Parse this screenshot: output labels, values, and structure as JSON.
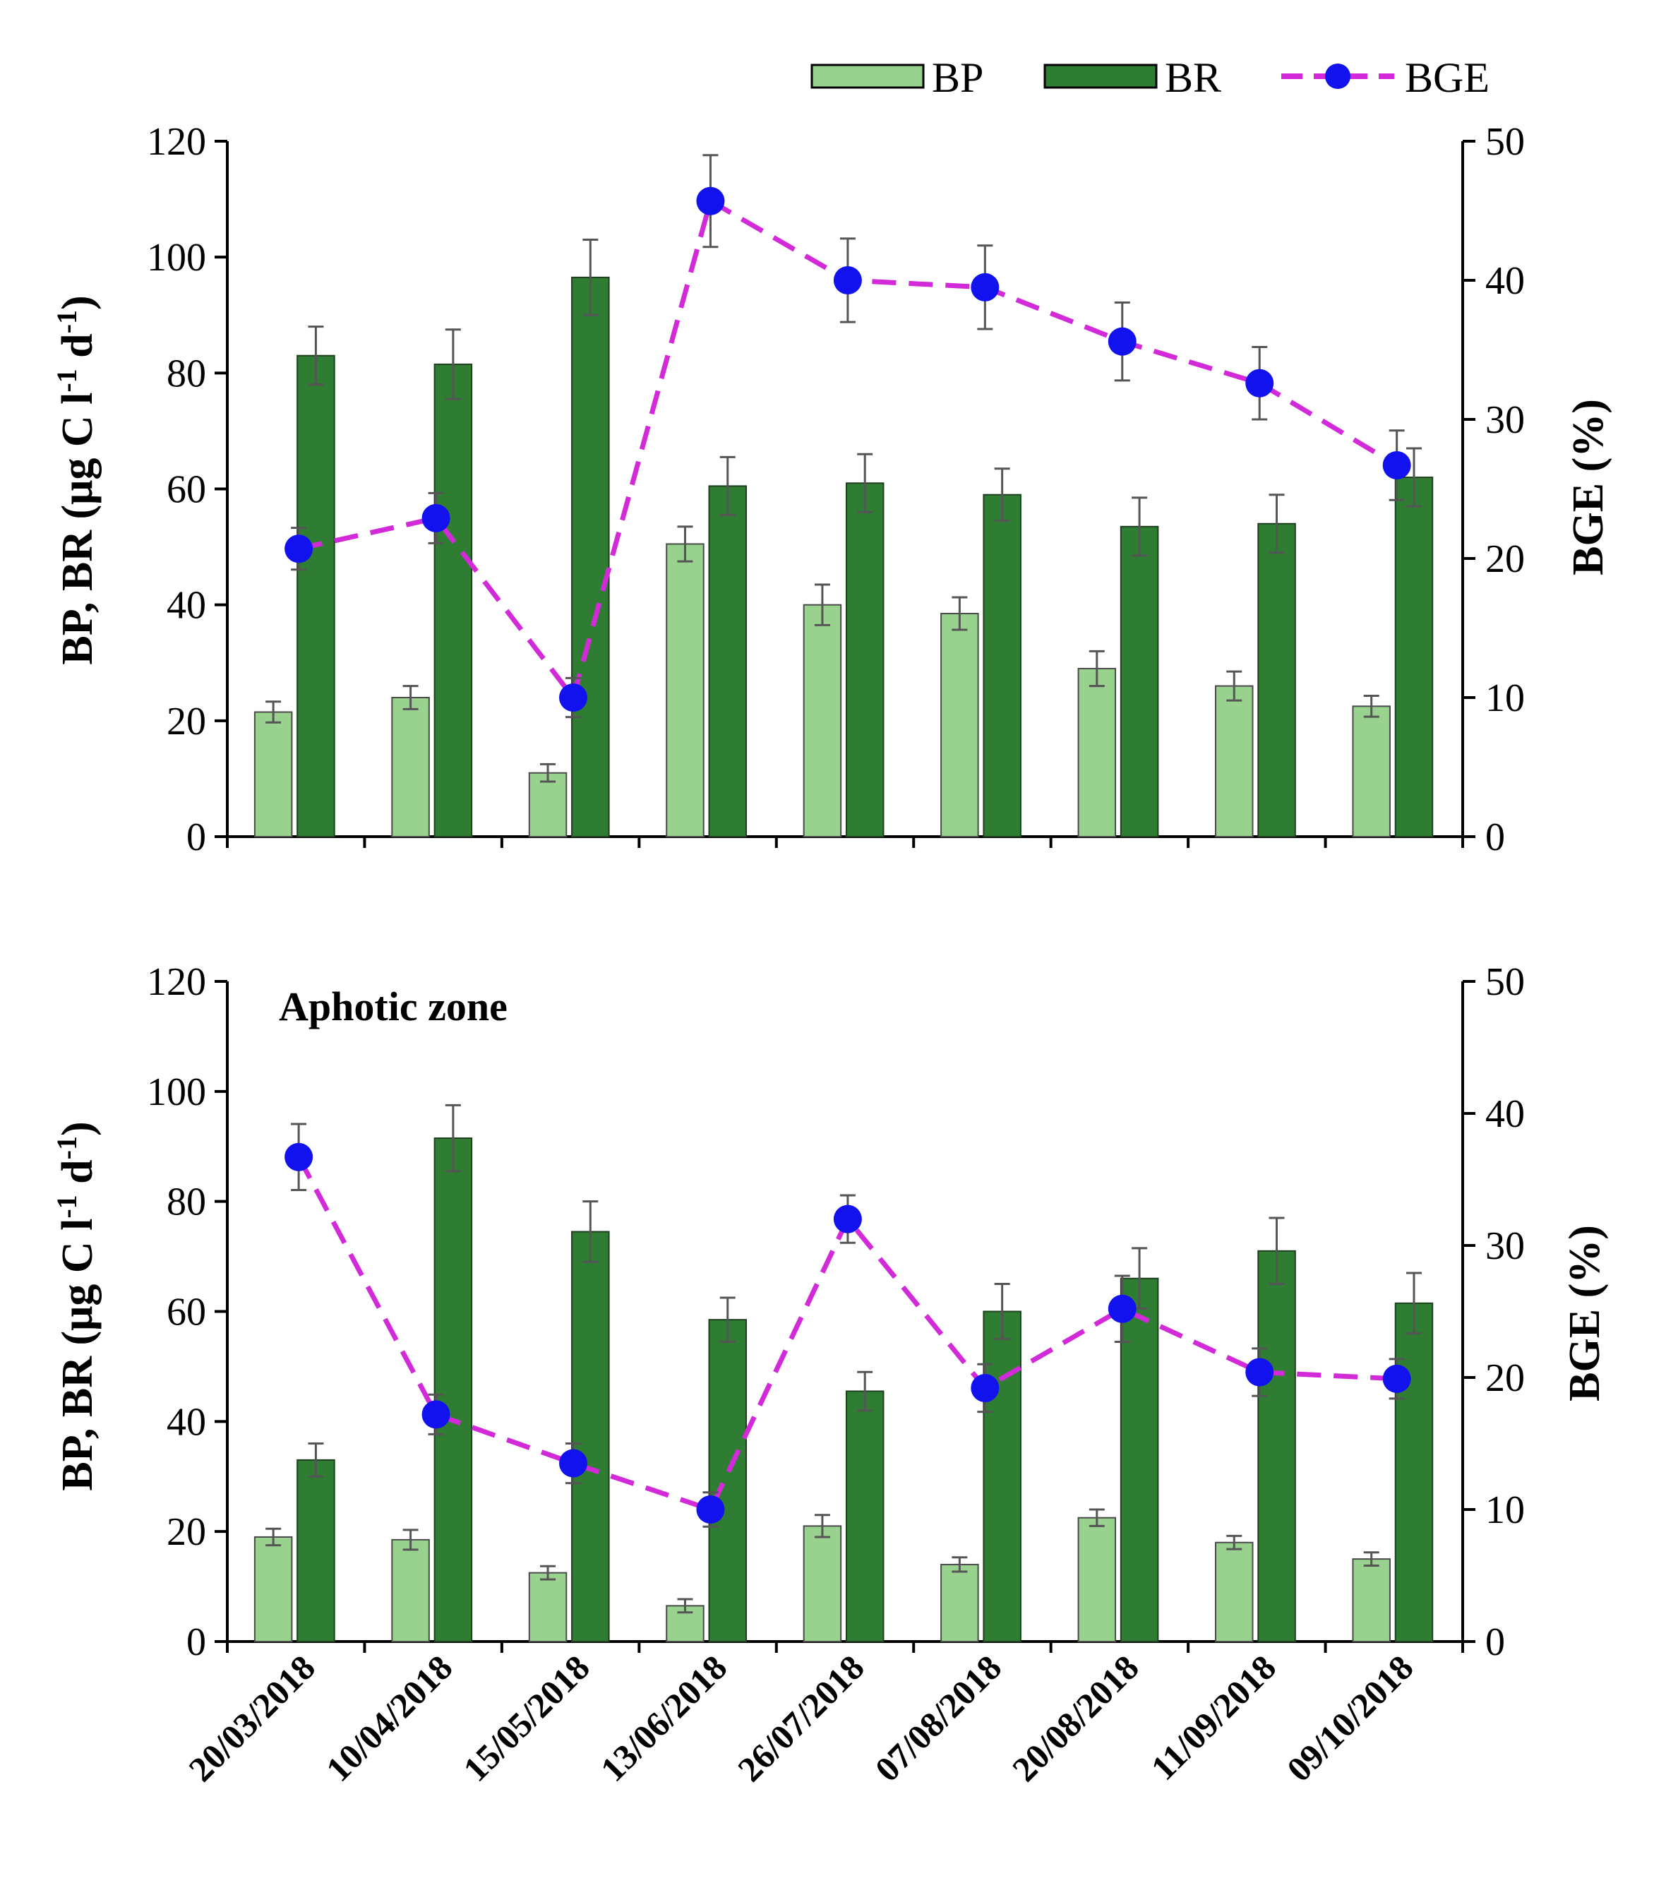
{
  "legend": {
    "bp": "BP",
    "br": "BR",
    "bge": "BGE"
  },
  "colors": {
    "bp": "#99d18f",
    "br": "#2e7d32",
    "bge_line": "#d22ad8",
    "bge_marker": "#1212ee",
    "axis": "#000000",
    "error": "#555555"
  },
  "chart_data": [
    {
      "type": "bar",
      "panel": "top",
      "title": "",
      "categories": [
        "20/03/2018",
        "10/04/2018",
        "15/05/2018",
        "13/06/2018",
        "26/07/2018",
        "07/08/2018",
        "20/08/2018",
        "11/09/2018",
        "09/10/2018"
      ],
      "ylabel": "BP, BR (μg C l-1 d-1)",
      "ylabel_main": "BP, BR (μg C l",
      "ylabel_sup1": "-1",
      "ylabel_mid": " d",
      "ylabel_sup2": "-1",
      "ylabel_end": ")",
      "y2label": "BGE (%)",
      "ylim": [
        0,
        120
      ],
      "y2lim": [
        0,
        50
      ],
      "yticks": [
        "0",
        "20",
        "40",
        "60",
        "80",
        "100",
        "120"
      ],
      "y2ticks": [
        "0",
        "10",
        "20",
        "30",
        "40",
        "50"
      ],
      "series": [
        {
          "name": "BP",
          "values": [
            21.5,
            24,
            11,
            50.5,
            40,
            38.5,
            29,
            26,
            22.5
          ],
          "errors": [
            1.8,
            2,
            1.5,
            3,
            3.5,
            2.8,
            3,
            2.5,
            1.8
          ]
        },
        {
          "name": "BR",
          "values": [
            83,
            81.5,
            96.5,
            60.5,
            61,
            59,
            53.5,
            54,
            62
          ],
          "errors": [
            5,
            6,
            6.5,
            5,
            5,
            4.5,
            5,
            5,
            5
          ]
        },
        {
          "name": "BGE",
          "axis": "right",
          "values": [
            20.7,
            22.9,
            10,
            45.7,
            40,
            39.5,
            35.6,
            32.6,
            26.7
          ],
          "errors": [
            1.5,
            1.8,
            1.4,
            3.3,
            3,
            3,
            2.8,
            2.6,
            2.5
          ]
        }
      ]
    },
    {
      "type": "bar",
      "panel": "bottom",
      "title": "Aphotic zone",
      "categories": [
        "20/03/2018",
        "10/04/2018",
        "15/05/2018",
        "13/06/2018",
        "26/07/2018",
        "07/08/2018",
        "20/08/2018",
        "11/09/2018",
        "09/10/2018"
      ],
      "ylabel": "BP, BR (μg C l-1 d-1)",
      "ylabel_main": "BP, BR (μg C l",
      "ylabel_sup1": "-1",
      "ylabel_mid": " d",
      "ylabel_sup2": "-1",
      "ylabel_end": ")",
      "y2label": "BGE (%)",
      "ylim": [
        0,
        120
      ],
      "y2lim": [
        0,
        50
      ],
      "yticks": [
        "0",
        "20",
        "40",
        "60",
        "80",
        "100",
        "120"
      ],
      "y2ticks": [
        "0",
        "10",
        "20",
        "30",
        "40",
        "50"
      ],
      "series": [
        {
          "name": "BP",
          "values": [
            19,
            18.5,
            12.5,
            6.5,
            21,
            14,
            22.5,
            18,
            15
          ],
          "errors": [
            1.5,
            1.8,
            1.2,
            1.2,
            2,
            1.3,
            1.5,
            1.2,
            1.2
          ]
        },
        {
          "name": "BR",
          "values": [
            33,
            91.5,
            74.5,
            58.5,
            45.5,
            60,
            66,
            71,
            61.5
          ],
          "errors": [
            3,
            6,
            5.5,
            4,
            3.5,
            5,
            5.5,
            6,
            5.5
          ]
        },
        {
          "name": "BGE",
          "axis": "right",
          "values": [
            36.7,
            17.2,
            13.5,
            10,
            32,
            19.2,
            25.2,
            20.4,
            19.9
          ],
          "errors": [
            2.5,
            1.5,
            1.5,
            1.3,
            1.8,
            1.8,
            2.5,
            1.8,
            1.5
          ]
        }
      ]
    }
  ]
}
